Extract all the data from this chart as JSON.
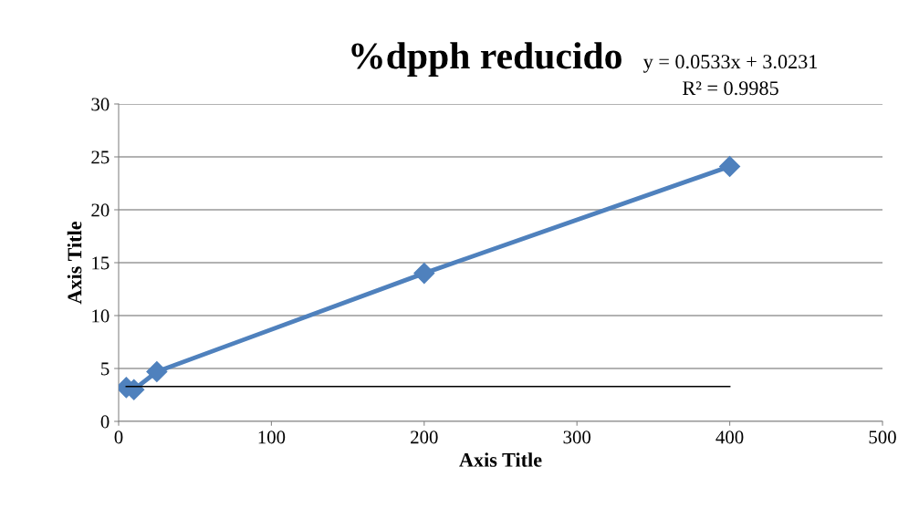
{
  "chart_data": {
    "type": "line",
    "title": "%dpph reducido",
    "xlabel": "Axis Title",
    "ylabel": "Axis Title",
    "x": [
      5,
      10,
      25,
      200,
      400
    ],
    "series": [
      {
        "color": "#4f81bd",
        "values": [
          3.2,
          3.0,
          4.7,
          14.0,
          24.1
        ],
        "marker": "diamond"
      },
      {
        "type": "line",
        "color": "#000000",
        "x": [
          5,
          400
        ],
        "values": [
          3.3,
          3.3
        ],
        "marker": "none"
      }
    ],
    "annotations": [
      "y = 0.0533x + 3.0231",
      "R² = 0.9985"
    ],
    "xlim": [
      0,
      500
    ],
    "xticks": [
      0,
      100,
      200,
      300,
      400,
      500
    ],
    "ylim": [
      0,
      30
    ],
    "yticks": [
      0,
      5,
      10,
      15,
      20,
      25,
      30
    ],
    "grid": "y",
    "legend": false
  }
}
